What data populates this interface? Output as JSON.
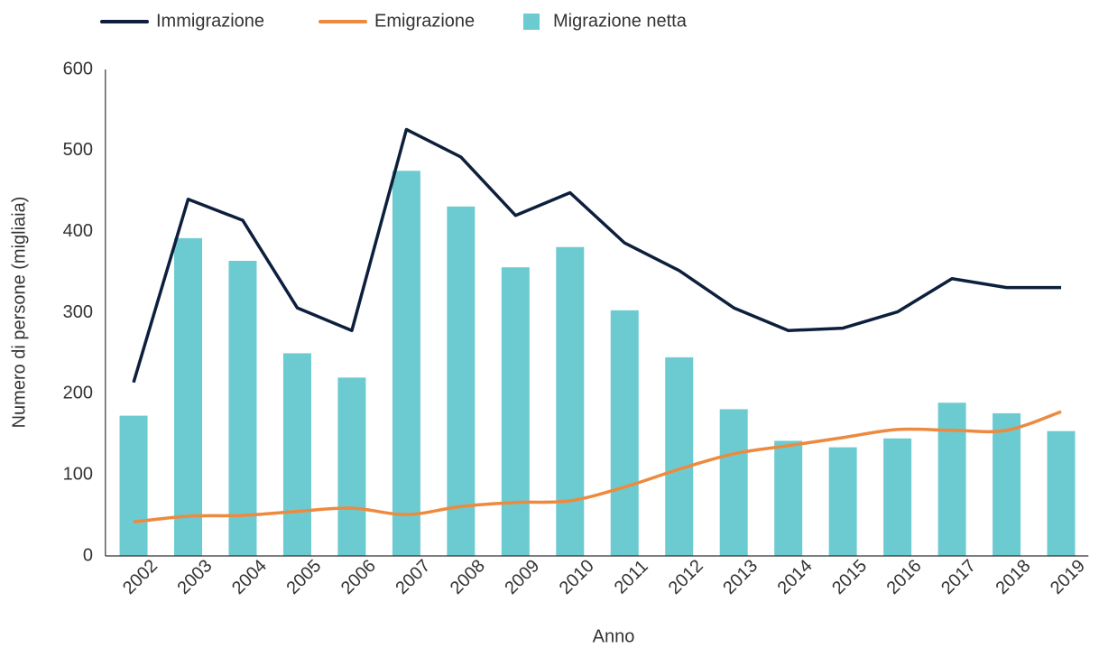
{
  "chart_data": {
    "type": "bar-line",
    "x_label": "Anno",
    "y_label": "Numero di persone (migliaia)",
    "categories": [
      "2002",
      "2003",
      "2004",
      "2005",
      "2006",
      "2007",
      "2008",
      "2009",
      "2010",
      "2011",
      "2012",
      "2013",
      "2014",
      "2015",
      "2016",
      "2017",
      "2018",
      "2019"
    ],
    "series": [
      {
        "name": "Immigrazione",
        "type": "line",
        "color": "#0d1f3c",
        "values": [
          214,
          440,
          414,
          306,
          278,
          526,
          492,
          420,
          448,
          386,
          352,
          306,
          278,
          281,
          301,
          342,
          331,
          331
        ]
      },
      {
        "name": "Emigrazione",
        "type": "line",
        "smooth": true,
        "color": "#ed8a3f",
        "values": [
          42,
          49,
          50,
          55,
          59,
          51,
          61,
          66,
          68,
          85,
          107,
          126,
          136,
          146,
          156,
          155,
          155,
          178
        ]
      },
      {
        "name": "Migrazione netta",
        "type": "bar",
        "color": "#6ccbd1",
        "values": [
          173,
          392,
          364,
          250,
          220,
          475,
          431,
          356,
          381,
          303,
          245,
          181,
          142,
          134,
          145,
          189,
          176,
          154
        ]
      }
    ],
    "ylim": [
      0,
      600
    ],
    "yticks": [
      0,
      100,
      200,
      300,
      400,
      500,
      600
    ],
    "grid": false,
    "legend": "top"
  }
}
